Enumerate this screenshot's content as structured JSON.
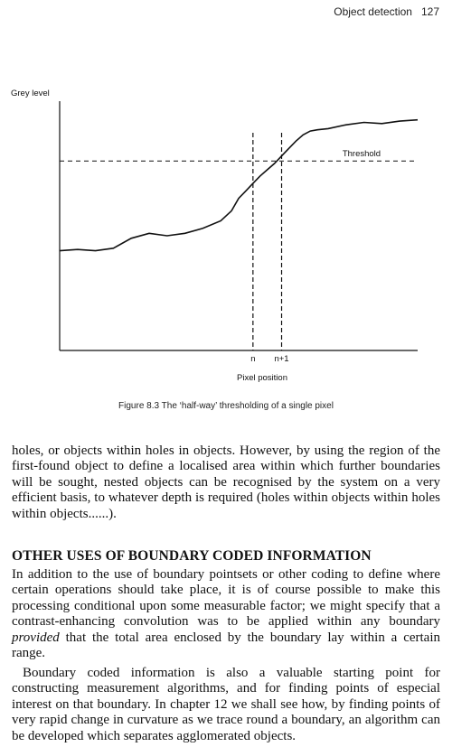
{
  "running_head": {
    "title": "Object detection",
    "page_number": "127"
  },
  "figure": {
    "caption": "Figure 8.3 The ‘half-way’ thresholding of a single pixel",
    "chart_data": {
      "type": "line",
      "ylabel": "Grey level",
      "xlabel": "Pixel position",
      "tick_labels": [
        "n",
        "n+1"
      ],
      "annotation": "Threshold",
      "x_range": [
        0,
        100
      ],
      "y_range": [
        0,
        100
      ],
      "threshold": 76,
      "n_position": 54,
      "n_plus_1_position": 62,
      "series": [
        {
          "x": [
            0,
            5,
            10,
            15,
            20,
            25,
            30,
            35,
            40,
            45,
            48,
            50,
            52,
            54,
            56,
            58,
            60,
            62,
            64,
            66,
            68,
            70,
            72,
            75,
            80,
            85,
            90,
            95,
            100
          ],
          "y": [
            40,
            40.5,
            40,
            41,
            45,
            47,
            46,
            47,
            49,
            52,
            56,
            61,
            64,
            67,
            70,
            72.5,
            75,
            78,
            81,
            84,
            86.5,
            88,
            88.5,
            89,
            90.5,
            91.5,
            91,
            92,
            92.5
          ]
        }
      ]
    }
  },
  "paragraphs": {
    "p1": "holes, or objects within holes in objects. However, by using the region of the first-found object to define a localised area within which further boundaries will be sought, nested objects can be recognised by the system on a very efficient basis, to whatever depth is required (holes within objects within holes within objects......).",
    "heading": "OTHER USES OF BOUNDARY CODED INFORMATION",
    "p2_before": "In addition to the use of boundary pointsets or other coding to define where certain operations should take place, it is of course possible to make this processing conditional upon some measurable factor; we might specify that a contrast-enhancing convolution was to be applied within any boundary ",
    "p2_emph": "provided",
    "p2_after": " that the total area enclosed by the boundary lay within a certain range.",
    "p3": "Boundary coded information is also a valuable starting point for constructing measurement algorithms, and for finding points of especial interest on that boundary. In chapter 12 we shall see how, by finding points of very rapid change in curvature as we trace round a boundary, an algorithm can be developed which separates agglomerated objects."
  }
}
